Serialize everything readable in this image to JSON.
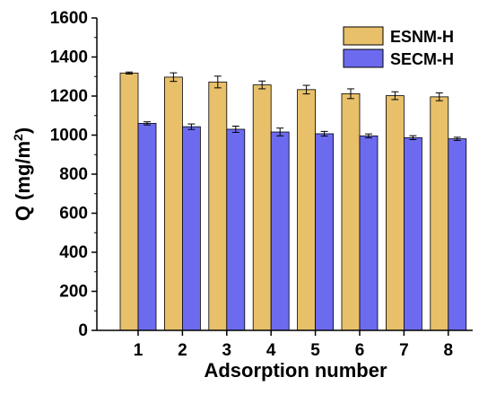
{
  "chart_data": {
    "type": "bar",
    "xlabel": "Adsorption number",
    "ylabel_main": "Q (mg/m",
    "ylabel_sup": "2",
    "ylabel_close": ")",
    "categories": [
      "1",
      "2",
      "3",
      "4",
      "5",
      "6",
      "7",
      "8"
    ],
    "ylim": [
      0,
      1600
    ],
    "yticks": [
      0,
      200,
      400,
      600,
      800,
      1000,
      1200,
      1400,
      1600
    ],
    "legend_position": "top-right",
    "grid": false,
    "series": [
      {
        "name": "ESNM-H",
        "color": "#E8C06A",
        "values": [
          1318,
          1297,
          1272,
          1257,
          1233,
          1212,
          1202,
          1196
        ],
        "errors": [
          5,
          22,
          30,
          20,
          22,
          25,
          20,
          20
        ]
      },
      {
        "name": "SECM-H",
        "color": "#6C6BF0",
        "values": [
          1060,
          1043,
          1030,
          1016,
          1007,
          996,
          987,
          981
        ],
        "errors": [
          8,
          14,
          16,
          20,
          12,
          10,
          10,
          8
        ]
      }
    ]
  }
}
